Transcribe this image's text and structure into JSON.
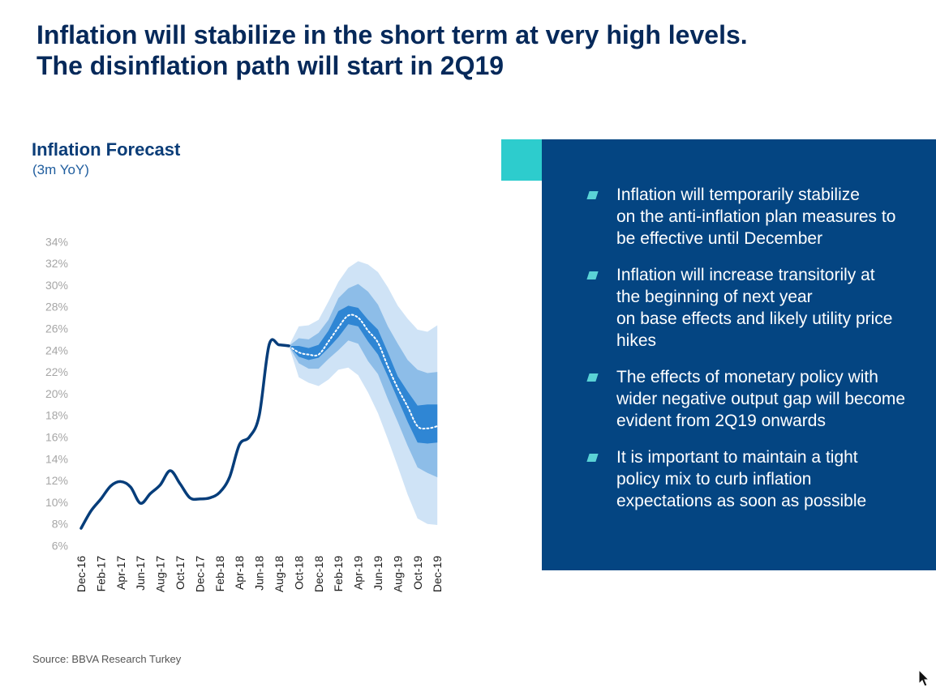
{
  "slide": {
    "title_lines": [
      "Inflation will stabilize in the short term at very high levels.",
      "The disinflation path will start in 2Q19"
    ],
    "source": "Source: BBVA Research Turkey"
  },
  "panel": {
    "bullets": [
      "Inflation will temporarily stabilize\non the anti-inflation plan measures to\nbe effective until December",
      "Inflation will increase transitorily at\nthe beginning of next year\non base effects and likely utility price\nhikes",
      "The effects of monetary policy with\nwider negative output gap will become\nevident from 2Q19 onwards",
      "It is important to maintain a tight\npolicy mix to curb inflation\nexpectations as soon as possible"
    ]
  },
  "colors": {
    "title": "#06295a",
    "panel": "#044582",
    "accent": "#2dcccd",
    "actual_line": "#063d7a",
    "band_outer": "#cfe3f6",
    "band_mid": "#8dbde8",
    "band_inner": "#2f86d4"
  },
  "icons": {
    "cursor": "arrow-cursor-icon",
    "bullet": "parallelogram-bullet-icon"
  },
  "chart_data": {
    "type": "area",
    "title": "Inflation Forecast",
    "subtitle": "(3m YoY)",
    "xlabel": "",
    "ylabel": "",
    "ylim": [
      6,
      34
    ],
    "yticks": [
      "6%",
      "8%",
      "10%",
      "12%",
      "14%",
      "16%",
      "18%",
      "20%",
      "22%",
      "24%",
      "26%",
      "28%",
      "30%",
      "32%",
      "34%"
    ],
    "xtick_labels": [
      "Dec-16",
      "Feb-17",
      "Apr-17",
      "Jun-17",
      "Aug-17",
      "Oct-17",
      "Dec-17",
      "Feb-18",
      "Apr-18",
      "Jun-18",
      "Aug-18",
      "Oct-18",
      "Dec-18",
      "Feb-19",
      "Apr-19",
      "Jun-19",
      "Aug-19",
      "Oct-19",
      "Dec-19"
    ],
    "grid": false,
    "legend": "none",
    "series": [
      {
        "kind": "actual",
        "x": [
          "Dec-16",
          "Jan-17",
          "Feb-17",
          "Mar-17",
          "Apr-17",
          "May-17",
          "Jun-17",
          "Jul-17",
          "Aug-17",
          "Sep-17",
          "Oct-17",
          "Nov-17",
          "Dec-17",
          "Jan-18",
          "Feb-18",
          "Mar-18",
          "Apr-18",
          "May-18",
          "Jun-18",
          "Jul-18",
          "Aug-18",
          "Sep-18"
        ],
        "values": [
          7.6,
          9.2,
          10.3,
          11.5,
          11.9,
          11.4,
          9.9,
          10.8,
          11.6,
          12.9,
          11.7,
          10.4,
          10.3,
          10.4,
          10.9,
          12.3,
          15.3,
          16.0,
          18.0,
          24.5,
          24.5,
          24.4
        ]
      },
      {
        "kind": "forecast",
        "x": [
          "Sep-18",
          "Oct-18",
          "Nov-18",
          "Dec-18",
          "Jan-19",
          "Feb-19",
          "Mar-19",
          "Apr-19",
          "May-19",
          "Jun-19",
          "Jul-19",
          "Aug-19",
          "Sep-19",
          "Oct-19",
          "Nov-19",
          "Dec-19"
        ],
        "values": [
          24.4,
          23.8,
          23.6,
          23.6,
          24.8,
          26.1,
          27.2,
          27.0,
          25.8,
          24.7,
          22.5,
          20.5,
          18.8,
          17.0,
          16.8,
          17.0
        ],
        "band_inner": [
          [
            24.4,
            24.4
          ],
          [
            23.4,
            24.4
          ],
          [
            23.1,
            24.2
          ],
          [
            23.3,
            24.5
          ],
          [
            24.2,
            25.8
          ],
          [
            25.2,
            27.6
          ],
          [
            26.4,
            28.1
          ],
          [
            26.2,
            27.9
          ],
          [
            24.8,
            26.8
          ],
          [
            23.6,
            25.9
          ],
          [
            21.6,
            23.8
          ],
          [
            19.5,
            21.6
          ],
          [
            17.4,
            20.2
          ],
          [
            15.5,
            18.9
          ],
          [
            15.4,
            19.0
          ],
          [
            15.5,
            19.0
          ]
        ],
        "band_mid": [
          [
            24.4,
            24.4
          ],
          [
            22.8,
            25.1
          ],
          [
            22.3,
            25.0
          ],
          [
            22.3,
            25.6
          ],
          [
            23.2,
            26.8
          ],
          [
            24.0,
            28.8
          ],
          [
            24.9,
            29.7
          ],
          [
            24.6,
            30.1
          ],
          [
            23.0,
            29.4
          ],
          [
            21.8,
            28.2
          ],
          [
            19.5,
            26.2
          ],
          [
            17.4,
            24.6
          ],
          [
            15.2,
            23.1
          ],
          [
            13.2,
            22.2
          ],
          [
            12.7,
            21.9
          ],
          [
            12.3,
            22.0
          ]
        ],
        "band_outer": [
          [
            24.4,
            24.4
          ],
          [
            21.5,
            26.2
          ],
          [
            21.0,
            26.3
          ],
          [
            20.7,
            26.8
          ],
          [
            21.3,
            28.5
          ],
          [
            22.2,
            30.3
          ],
          [
            22.4,
            31.6
          ],
          [
            21.7,
            32.2
          ],
          [
            20.1,
            31.9
          ],
          [
            18.2,
            31.2
          ],
          [
            15.8,
            29.8
          ],
          [
            13.3,
            28.1
          ],
          [
            10.7,
            26.9
          ],
          [
            8.5,
            25.9
          ],
          [
            8.0,
            25.7
          ],
          [
            7.9,
            26.3
          ]
        ]
      }
    ]
  }
}
